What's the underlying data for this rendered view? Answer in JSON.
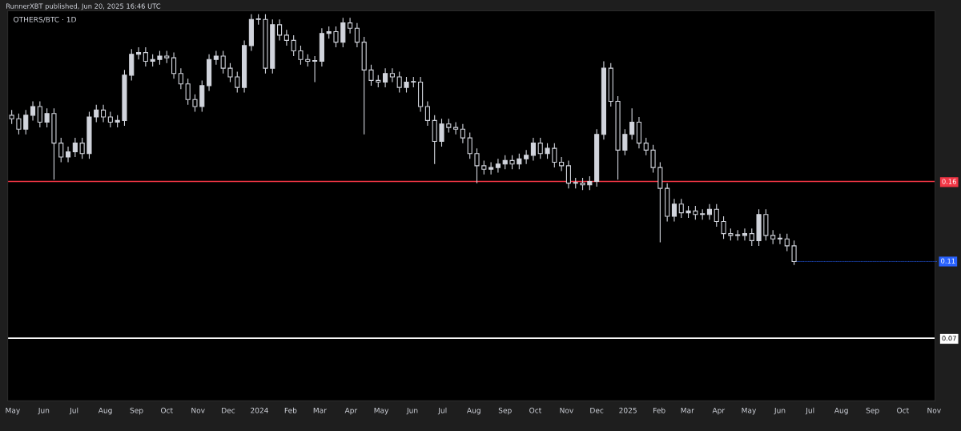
{
  "chart_data": {
    "type": "candlestick",
    "title": "OTHERS/BTC · 1D",
    "annotations": [
      "RunnerXBT published, Jun 20, 2025 16:46 UTC",
      {
        "text": "0.11",
        "x": "2025-06-15",
        "y": 0.114
      }
    ],
    "color": "#d1d4dc",
    "x": [
      "2023-04-30",
      "2023-05-07",
      "2023-05-14",
      "2023-05-21",
      "2023-05-28",
      "2023-06-04",
      "2023-06-11",
      "2023-06-18",
      "2023-06-25",
      "2023-07-02",
      "2023-07-09",
      "2023-07-16",
      "2023-07-23",
      "2023-07-30",
      "2023-08-06",
      "2023-08-13",
      "2023-08-20",
      "2023-08-27",
      "2023-09-03",
      "2023-09-10",
      "2023-09-17",
      "2023-09-24",
      "2023-10-01",
      "2023-10-08",
      "2023-10-15",
      "2023-10-22",
      "2023-10-29",
      "2023-11-05",
      "2023-11-12",
      "2023-11-19",
      "2023-11-26",
      "2023-12-03",
      "2023-12-10",
      "2023-12-17",
      "2023-12-24",
      "2023-12-31",
      "2024-01-07",
      "2024-01-14",
      "2024-01-21",
      "2024-01-28",
      "2024-02-04",
      "2024-02-11",
      "2024-02-18",
      "2024-02-25",
      "2024-03-03",
      "2024-03-10",
      "2024-03-17",
      "2024-03-24",
      "2024-03-31",
      "2024-04-07",
      "2024-04-14",
      "2024-04-21",
      "2024-04-28",
      "2024-05-05",
      "2024-05-12",
      "2024-05-19",
      "2024-05-26",
      "2024-06-02",
      "2024-06-09",
      "2024-06-16",
      "2024-06-23",
      "2024-06-30",
      "2024-07-07",
      "2024-07-14",
      "2024-07-21",
      "2024-07-28",
      "2024-08-04",
      "2024-08-11",
      "2024-08-18",
      "2024-08-25",
      "2024-09-01",
      "2024-09-08",
      "2024-09-15",
      "2024-09-22",
      "2024-09-29",
      "2024-10-06",
      "2024-10-13",
      "2024-10-20",
      "2024-10-27",
      "2024-11-03",
      "2024-11-10",
      "2024-11-17",
      "2024-11-24",
      "2024-12-01",
      "2024-12-08",
      "2024-12-15",
      "2024-12-22",
      "2024-12-29",
      "2025-01-05",
      "2025-01-12",
      "2025-01-19",
      "2025-01-26",
      "2025-02-02",
      "2025-02-09",
      "2025-02-16",
      "2025-02-23",
      "2025-03-02",
      "2025-03-09",
      "2025-03-16",
      "2025-03-23",
      "2025-03-30",
      "2025-04-06",
      "2025-04-13",
      "2025-04-20",
      "2025-04-27",
      "2025-05-04",
      "2025-05-11",
      "2025-05-18",
      "2025-05-25",
      "2025-06-01",
      "2025-06-08",
      "2025-06-15"
    ],
    "ohlc": [
      [
        0.198,
        0.201,
        0.193,
        0.196
      ],
      [
        0.196,
        0.199,
        0.187,
        0.19
      ],
      [
        0.19,
        0.201,
        0.187,
        0.198
      ],
      [
        0.198,
        0.206,
        0.195,
        0.203
      ],
      [
        0.203,
        0.206,
        0.191,
        0.194
      ],
      [
        0.194,
        0.202,
        0.191,
        0.199
      ],
      [
        0.199,
        0.202,
        0.161,
        0.182
      ],
      [
        0.182,
        0.185,
        0.171,
        0.174
      ],
      [
        0.174,
        0.18,
        0.171,
        0.177
      ],
      [
        0.177,
        0.185,
        0.174,
        0.182
      ],
      [
        0.182,
        0.185,
        0.173,
        0.176
      ],
      [
        0.176,
        0.2,
        0.173,
        0.197
      ],
      [
        0.197,
        0.204,
        0.194,
        0.201
      ],
      [
        0.201,
        0.204,
        0.194,
        0.197
      ],
      [
        0.197,
        0.2,
        0.191,
        0.194
      ],
      [
        0.194,
        0.198,
        0.191,
        0.195
      ],
      [
        0.195,
        0.224,
        0.192,
        0.221
      ],
      [
        0.221,
        0.236,
        0.218,
        0.233
      ],
      [
        0.233,
        0.237,
        0.23,
        0.234
      ],
      [
        0.234,
        0.237,
        0.226,
        0.229
      ],
      [
        0.229,
        0.233,
        0.226,
        0.23
      ],
      [
        0.23,
        0.235,
        0.227,
        0.232
      ],
      [
        0.232,
        0.235,
        0.228,
        0.231
      ],
      [
        0.231,
        0.234,
        0.219,
        0.222
      ],
      [
        0.222,
        0.225,
        0.213,
        0.216
      ],
      [
        0.216,
        0.219,
        0.204,
        0.207
      ],
      [
        0.207,
        0.21,
        0.2,
        0.203
      ],
      [
        0.203,
        0.218,
        0.2,
        0.215
      ],
      [
        0.215,
        0.233,
        0.212,
        0.23
      ],
      [
        0.23,
        0.235,
        0.227,
        0.232
      ],
      [
        0.232,
        0.235,
        0.222,
        0.225
      ],
      [
        0.225,
        0.228,
        0.217,
        0.22
      ],
      [
        0.22,
        0.223,
        0.211,
        0.214
      ],
      [
        0.214,
        0.241,
        0.211,
        0.238
      ],
      [
        0.238,
        0.256,
        0.235,
        0.253
      ],
      [
        0.253,
        0.256,
        0.25,
        0.253
      ],
      [
        0.253,
        0.256,
        0.222,
        0.225
      ],
      [
        0.225,
        0.253,
        0.222,
        0.25
      ],
      [
        0.25,
        0.253,
        0.241,
        0.244
      ],
      [
        0.244,
        0.247,
        0.238,
        0.241
      ],
      [
        0.241,
        0.244,
        0.232,
        0.235
      ],
      [
        0.235,
        0.238,
        0.227,
        0.23
      ],
      [
        0.23,
        0.233,
        0.226,
        0.229
      ],
      [
        0.229,
        0.232,
        0.217,
        0.229
      ],
      [
        0.229,
        0.248,
        0.226,
        0.245
      ],
      [
        0.245,
        0.249,
        0.242,
        0.246
      ],
      [
        0.246,
        0.249,
        0.237,
        0.24
      ],
      [
        0.24,
        0.254,
        0.237,
        0.251
      ],
      [
        0.251,
        0.254,
        0.245,
        0.248
      ],
      [
        0.248,
        0.251,
        0.237,
        0.24
      ],
      [
        0.24,
        0.243,
        0.187,
        0.224
      ],
      [
        0.224,
        0.227,
        0.215,
        0.218
      ],
      [
        0.218,
        0.221,
        0.214,
        0.217
      ],
      [
        0.217,
        0.225,
        0.214,
        0.222
      ],
      [
        0.222,
        0.225,
        0.217,
        0.22
      ],
      [
        0.22,
        0.223,
        0.211,
        0.214
      ],
      [
        0.214,
        0.22,
        0.211,
        0.217
      ],
      [
        0.217,
        0.22,
        0.214,
        0.217
      ],
      [
        0.217,
        0.22,
        0.2,
        0.203
      ],
      [
        0.203,
        0.206,
        0.192,
        0.195
      ],
      [
        0.195,
        0.198,
        0.17,
        0.183
      ],
      [
        0.183,
        0.196,
        0.18,
        0.193
      ],
      [
        0.193,
        0.196,
        0.188,
        0.191
      ],
      [
        0.191,
        0.194,
        0.187,
        0.19
      ],
      [
        0.19,
        0.193,
        0.182,
        0.185
      ],
      [
        0.185,
        0.188,
        0.173,
        0.176
      ],
      [
        0.176,
        0.179,
        0.159,
        0.169
      ],
      [
        0.169,
        0.172,
        0.164,
        0.167
      ],
      [
        0.167,
        0.171,
        0.164,
        0.168
      ],
      [
        0.168,
        0.173,
        0.165,
        0.17
      ],
      [
        0.17,
        0.175,
        0.167,
        0.172
      ],
      [
        0.172,
        0.175,
        0.167,
        0.17
      ],
      [
        0.17,
        0.176,
        0.167,
        0.173
      ],
      [
        0.173,
        0.178,
        0.17,
        0.175
      ],
      [
        0.175,
        0.185,
        0.172,
        0.182
      ],
      [
        0.182,
        0.185,
        0.173,
        0.176
      ],
      [
        0.176,
        0.182,
        0.173,
        0.179
      ],
      [
        0.179,
        0.182,
        0.168,
        0.171
      ],
      [
        0.171,
        0.174,
        0.166,
        0.169
      ],
      [
        0.169,
        0.172,
        0.156,
        0.159
      ],
      [
        0.159,
        0.162,
        0.156,
        0.159
      ],
      [
        0.159,
        0.162,
        0.155,
        0.158
      ],
      [
        0.158,
        0.163,
        0.155,
        0.16
      ],
      [
        0.16,
        0.19,
        0.157,
        0.187
      ],
      [
        0.187,
        0.229,
        0.184,
        0.225
      ],
      [
        0.225,
        0.228,
        0.203,
        0.206
      ],
      [
        0.206,
        0.209,
        0.161,
        0.178
      ],
      [
        0.178,
        0.19,
        0.175,
        0.187
      ],
      [
        0.187,
        0.202,
        0.184,
        0.194
      ],
      [
        0.194,
        0.197,
        0.179,
        0.182
      ],
      [
        0.182,
        0.185,
        0.175,
        0.178
      ],
      [
        0.178,
        0.181,
        0.165,
        0.168
      ],
      [
        0.168,
        0.171,
        0.125,
        0.156
      ],
      [
        0.156,
        0.159,
        0.137,
        0.14
      ],
      [
        0.14,
        0.15,
        0.137,
        0.147
      ],
      [
        0.147,
        0.15,
        0.139,
        0.142
      ],
      [
        0.142,
        0.146,
        0.139,
        0.143
      ],
      [
        0.143,
        0.146,
        0.138,
        0.141
      ],
      [
        0.141,
        0.144,
        0.138,
        0.141
      ],
      [
        0.141,
        0.147,
        0.138,
        0.144
      ],
      [
        0.144,
        0.147,
        0.134,
        0.137
      ],
      [
        0.137,
        0.14,
        0.127,
        0.13
      ],
      [
        0.13,
        0.133,
        0.126,
        0.129
      ],
      [
        0.129,
        0.132,
        0.126,
        0.129
      ],
      [
        0.129,
        0.133,
        0.126,
        0.13
      ],
      [
        0.13,
        0.133,
        0.123,
        0.126
      ],
      [
        0.126,
        0.144,
        0.123,
        0.141
      ],
      [
        0.141,
        0.144,
        0.126,
        0.129
      ],
      [
        0.129,
        0.132,
        0.124,
        0.127
      ],
      [
        0.127,
        0.13,
        0.124,
        0.127
      ],
      [
        0.127,
        0.13,
        0.12,
        0.123
      ],
      [
        0.123,
        0.126,
        0.112,
        0.114
      ]
    ],
    "xlim": [
      "2023-04-26",
      "2025-11-02"
    ],
    "xticks": [
      {
        "value": "2023-05-01",
        "label": "May"
      },
      {
        "value": "2023-06-01",
        "label": "Jun"
      },
      {
        "value": "2023-07-01",
        "label": "Jul"
      },
      {
        "value": "2023-08-01",
        "label": "Aug"
      },
      {
        "value": "2023-09-01",
        "label": "Sep"
      },
      {
        "value": "2023-10-01",
        "label": "Oct"
      },
      {
        "value": "2023-11-01",
        "label": "Nov"
      },
      {
        "value": "2023-12-01",
        "label": "Dec"
      },
      {
        "value": "2024-01-01",
        "label": "2024"
      },
      {
        "value": "2024-02-01",
        "label": "Feb"
      },
      {
        "value": "2024-03-01",
        "label": "Mar"
      },
      {
        "value": "2024-04-01",
        "label": "Apr"
      },
      {
        "value": "2024-05-01",
        "label": "May"
      },
      {
        "value": "2024-06-01",
        "label": "Jun"
      },
      {
        "value": "2024-07-01",
        "label": "Jul"
      },
      {
        "value": "2024-08-01",
        "label": "Aug"
      },
      {
        "value": "2024-09-01",
        "label": "Sep"
      },
      {
        "value": "2024-10-01",
        "label": "Oct"
      },
      {
        "value": "2024-11-01",
        "label": "Nov"
      },
      {
        "value": "2024-12-01",
        "label": "Dec"
      },
      {
        "value": "2025-01-01",
        "label": "2025"
      },
      {
        "value": "2025-02-01",
        "label": "Feb"
      },
      {
        "value": "2025-03-01",
        "label": "Mar"
      },
      {
        "value": "2025-04-01",
        "label": "Apr"
      },
      {
        "value": "2025-05-01",
        "label": "May"
      },
      {
        "value": "2025-06-01",
        "label": "Jun"
      },
      {
        "value": "2025-07-01",
        "label": "Jul"
      },
      {
        "value": "2025-08-01",
        "label": "Aug"
      },
      {
        "value": "2025-09-01",
        "label": "Sep"
      },
      {
        "value": "2025-10-01",
        "label": "Oct"
      },
      {
        "value": "2025-11-01",
        "label": "Nov"
      }
    ],
    "ylim": [
      0.034,
      0.258
    ],
    "yticks": [
      0.07,
      0.16
    ],
    "ref_lines": [
      {
        "axis": "y",
        "value": 0.16,
        "color": "#f23645"
      },
      {
        "axis": "y",
        "value": 0.07,
        "color": "#ffffff"
      }
    ],
    "grid": false
  }
}
